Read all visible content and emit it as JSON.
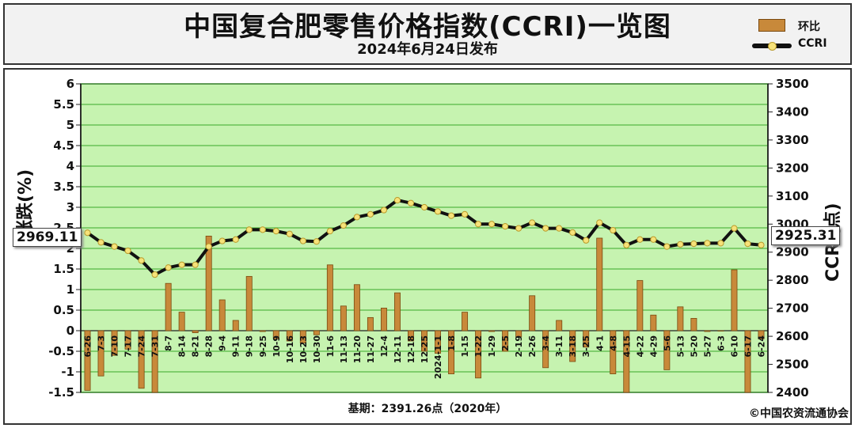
{
  "header": {
    "title": "中国复合肥零售价格指数(CCRI)一览图",
    "subtitle": "2024年6月24日发布"
  },
  "legend": {
    "bar_label": "环比",
    "line_label": "CCRI"
  },
  "callouts": {
    "left_value": "2969.11",
    "right_value": "2925.31"
  },
  "footer": {
    "base_text": "基期：2391.26点（2020年）",
    "copyright": "©中国农资流通协会"
  },
  "axes": {
    "left_label": "涨跌(%)",
    "right_label": "CCRI(点)"
  },
  "colors": {
    "bar_fill": "#c8893a",
    "bar_edge": "#7a4a10",
    "plot_bg": "#c6f3b0",
    "grid": "#3aa82a",
    "line": "#111111",
    "marker": "#f6e27a"
  },
  "chart_data": {
    "type": "bar+line",
    "title": "中国复合肥零售价格指数(CCRI)一览图",
    "subtitle": "2024年6月24日发布",
    "ylabel_left": "涨跌(%)",
    "ylabel_right": "CCRI(点)",
    "ylim_left": [
      -1.5,
      6
    ],
    "ylim_right": [
      2400,
      3500
    ],
    "yticks_left": [
      "-1.5",
      "-1",
      "-0.5",
      "0",
      "0.5",
      "1",
      "1.5",
      "2",
      "2.5",
      "3",
      "3.5",
      "4",
      "4.5",
      "5",
      "5.5",
      "6"
    ],
    "yticks_right": [
      "2400",
      "2500",
      "2600",
      "2700",
      "2800",
      "2900",
      "3000",
      "3100",
      "3200",
      "3300",
      "3400",
      "3500"
    ],
    "grid": true,
    "categories": [
      "6-26",
      "7-3",
      "7-10",
      "7-17",
      "7-24",
      "7-31",
      "8-7",
      "8-14",
      "8-21",
      "8-28",
      "9-4",
      "9-11",
      "9-18",
      "9-25",
      "10-9",
      "10-16",
      "10-23",
      "10-30",
      "11-6",
      "11-13",
      "11-20",
      "11-27",
      "12-4",
      "12-11",
      "12-18",
      "12-25",
      "2024-1-1",
      "1-8",
      "1-15",
      "1-22",
      "1-29",
      "2-5",
      "2-19",
      "2-26",
      "3-4",
      "3-11",
      "3-18",
      "3-25",
      "4-1",
      "4-8",
      "4-15",
      "4-22",
      "4-29",
      "5-6",
      "5-13",
      "5-20",
      "5-27",
      "6-3",
      "6-10",
      "6-17",
      "6-24"
    ],
    "series": [
      {
        "name": "环比",
        "type": "bar",
        "values": [
          -1.45,
          -1.1,
          -0.6,
          -0.45,
          -1.4,
          -1.5,
          1.15,
          0.45,
          -0.05,
          2.3,
          0.75,
          0.25,
          1.32,
          -0.02,
          -0.2,
          -0.25,
          -0.3,
          -0.1,
          1.6,
          0.6,
          1.12,
          0.32,
          0.55,
          0.92,
          -0.25,
          -0.5,
          -0.55,
          -1.05,
          0.45,
          -1.15,
          -0.02,
          -0.5,
          -0.15,
          0.85,
          -0.9,
          0.25,
          -0.75,
          -0.4,
          2.25,
          -1.05,
          -1.5,
          1.22,
          0.38,
          -0.95,
          0.58,
          0.3,
          -0.02,
          0.0,
          1.48,
          -1.5,
          -0.2
        ]
      },
      {
        "name": "CCRI",
        "type": "line",
        "values": [
          2969.11,
          2935,
          2920,
          2905,
          2870,
          2820,
          2845,
          2855,
          2855,
          2920,
          2940,
          2945,
          2980,
          2980,
          2975,
          2965,
          2940,
          2938,
          2975,
          2995,
          3025,
          3035,
          3050,
          3085,
          3075,
          3060,
          3045,
          3030,
          3035,
          3000,
          3000,
          2992,
          2985,
          3005,
          2985,
          2985,
          2970,
          2942,
          3005,
          2978,
          2925,
          2945,
          2945,
          2920,
          2928,
          2930,
          2932,
          2932,
          2985,
          2930,
          2925.31
        ]
      }
    ]
  }
}
